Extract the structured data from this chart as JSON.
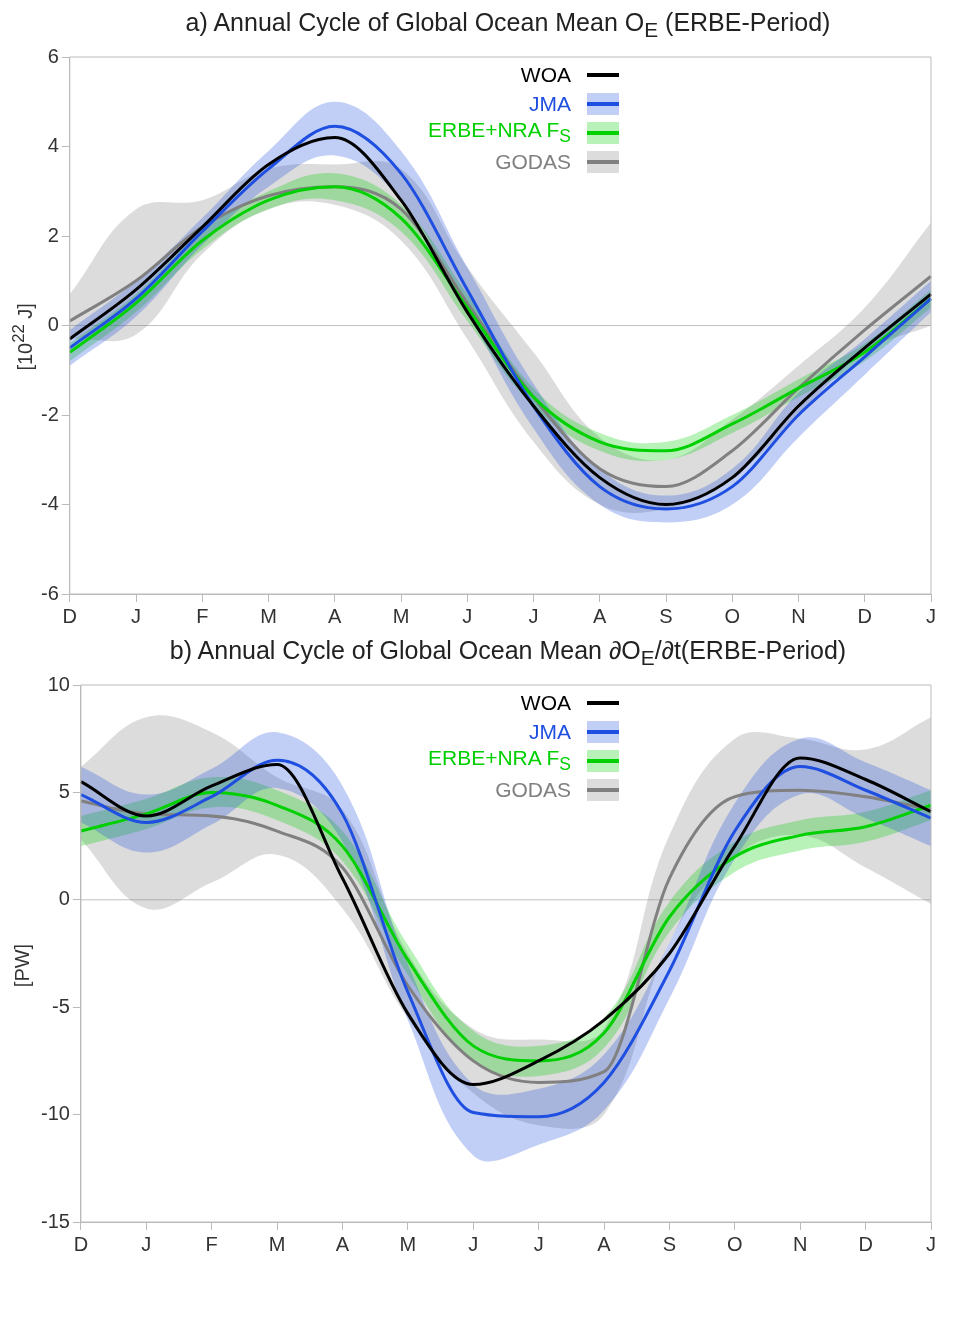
{
  "chart_data": [
    {
      "type": "line",
      "title": "a) Annual Cycle of Global Ocean Mean O$_{E}$ (ERBE-Period)",
      "ylabel": "[10$^{22}$ J]",
      "categories": [
        "D",
        "J",
        "F",
        "M",
        "A",
        "M",
        "J",
        "J",
        "A",
        "S",
        "O",
        "N",
        "D",
        "J"
      ],
      "ylim": [
        -6,
        6
      ],
      "yticks": [
        -6,
        -4,
        -2,
        0,
        2,
        4,
        6
      ],
      "grid": false,
      "legend": "top",
      "ref_lines": [
        {
          "axis": "y",
          "value": 0,
          "color": "#c0c0c0"
        }
      ],
      "series": [
        {
          "name": "WOA",
          "color": "#000000",
          "values": [
            -0.3,
            0.8,
            2.2,
            3.6,
            4.2,
            2.8,
            0.3,
            -1.8,
            -3.4,
            -4.0,
            -3.4,
            -1.8,
            -0.5,
            0.7
          ]
        },
        {
          "name": "JMA",
          "color": "#1f4fe0",
          "values": [
            -0.5,
            0.6,
            2.1,
            3.5,
            4.45,
            3.4,
            0.8,
            -1.8,
            -3.6,
            -4.1,
            -3.6,
            -2.0,
            -0.7,
            0.6
          ],
          "lower": [
            -0.9,
            0.2,
            1.8,
            3.1,
            3.8,
            2.8,
            0.3,
            -2.3,
            -4.0,
            -4.4,
            -4.0,
            -2.5,
            -1.1,
            0.3
          ],
          "upper": [
            -0.1,
            1.0,
            2.4,
            3.9,
            5.0,
            3.9,
            1.3,
            -1.3,
            -3.2,
            -3.8,
            -3.2,
            -1.5,
            -0.3,
            1.0
          ]
        },
        {
          "name": "ERBE+NRA F$_{S}$",
          "color": "#00d000",
          "values": [
            -0.6,
            0.5,
            1.9,
            2.8,
            3.1,
            2.4,
            0.4,
            -1.6,
            -2.6,
            -2.8,
            -2.2,
            -1.4,
            -0.6,
            0.6
          ],
          "lower": [
            -0.8,
            0.3,
            1.7,
            2.6,
            2.8,
            2.1,
            0.1,
            -1.8,
            -2.8,
            -3.0,
            -2.4,
            -1.6,
            -0.8,
            0.4
          ],
          "upper": [
            -0.4,
            0.7,
            2.1,
            3.0,
            3.4,
            2.7,
            0.7,
            -1.4,
            -2.4,
            -2.6,
            -2.0,
            -1.2,
            -0.4,
            0.8
          ]
        },
        {
          "name": "GODAS",
          "color": "#808080",
          "values": [
            0.1,
            1.0,
            2.2,
            2.9,
            3.1,
            2.6,
            0.5,
            -1.6,
            -3.2,
            -3.6,
            -2.8,
            -1.4,
            -0.1,
            1.1
          ],
          "lower": [
            -0.3,
            -0.2,
            1.6,
            2.6,
            2.7,
            1.9,
            -0.3,
            -2.6,
            -4.0,
            -4.1,
            -3.4,
            -2.0,
            -0.6,
            0.0
          ],
          "upper": [
            0.7,
            2.6,
            2.8,
            3.5,
            3.6,
            3.5,
            1.3,
            -0.6,
            -2.5,
            -3.0,
            -2.1,
            -0.9,
            0.4,
            2.3
          ]
        }
      ]
    },
    {
      "type": "line",
      "title": "b) Annual Cycle of Global Ocean Mean ∂O$_{E}$/∂t(ERBE-Period)",
      "ylabel": "[PW]",
      "categories": [
        "D",
        "J",
        "F",
        "M",
        "A",
        "M",
        "J",
        "J",
        "A",
        "S",
        "O",
        "N",
        "D",
        "J"
      ],
      "ylim": [
        -15,
        10
      ],
      "yticks": [
        -15,
        -10,
        -5,
        0,
        5,
        10
      ],
      "grid": false,
      "legend": "top",
      "ref_lines": [
        {
          "axis": "y",
          "value": 0,
          "color": "#c0c0c0"
        }
      ],
      "series": [
        {
          "name": "WOA",
          "color": "#000000",
          "values": [
            5.5,
            3.9,
            5.3,
            6.3,
            1.0,
            -5.3,
            -8.6,
            -7.5,
            -5.6,
            -2.5,
            2.5,
            6.6,
            5.6,
            4.1
          ]
        },
        {
          "name": "JMA",
          "color": "#1f4fe0",
          "values": [
            4.9,
            3.6,
            4.8,
            6.5,
            4.0,
            -4.3,
            -9.9,
            -10.1,
            -8.5,
            -3.3,
            3.2,
            6.2,
            5.1,
            3.8
          ],
          "lower": [
            3.6,
            2.2,
            3.5,
            5.2,
            2.7,
            -5.6,
            -11.9,
            -11.4,
            -9.8,
            -4.6,
            1.9,
            4.9,
            3.8,
            2.5
          ],
          "upper": [
            6.2,
            4.9,
            6.1,
            7.8,
            5.3,
            -3.0,
            -8.6,
            -8.8,
            -7.2,
            -2.0,
            4.5,
            7.5,
            6.4,
            5.1
          ]
        },
        {
          "name": "ERBE+NRA F$_{S}$",
          "color": "#00d000",
          "values": [
            3.2,
            4.0,
            5.0,
            4.4,
            2.5,
            -2.8,
            -6.8,
            -7.5,
            -6.2,
            -0.8,
            2.0,
            3.0,
            3.4,
            4.4
          ],
          "lower": [
            2.5,
            3.3,
            4.3,
            3.7,
            1.8,
            -3.5,
            -7.5,
            -8.2,
            -6.9,
            -1.5,
            1.3,
            2.3,
            2.7,
            3.7
          ],
          "upper": [
            3.9,
            4.7,
            5.7,
            5.1,
            3.2,
            -2.1,
            -6.1,
            -6.8,
            -5.5,
            -0.1,
            2.7,
            3.7,
            4.1,
            5.1
          ]
        },
        {
          "name": "GODAS",
          "color": "#808080",
          "values": [
            4.6,
            4.0,
            3.9,
            3.2,
            1.5,
            -4.0,
            -7.5,
            -8.5,
            -8.0,
            1.0,
            4.8,
            5.1,
            4.8,
            4.2
          ],
          "lower": [
            2.8,
            -0.4,
            0.8,
            2.1,
            -0.4,
            -5.5,
            -9.0,
            -10.5,
            -10.0,
            -2.0,
            2.0,
            3.0,
            1.5,
            -0.2
          ],
          "upper": [
            6.2,
            8.5,
            7.8,
            5.7,
            4.2,
            -2.5,
            -6.0,
            -6.5,
            -6.0,
            3.0,
            7.5,
            7.5,
            7.0,
            8.5
          ]
        }
      ]
    }
  ]
}
